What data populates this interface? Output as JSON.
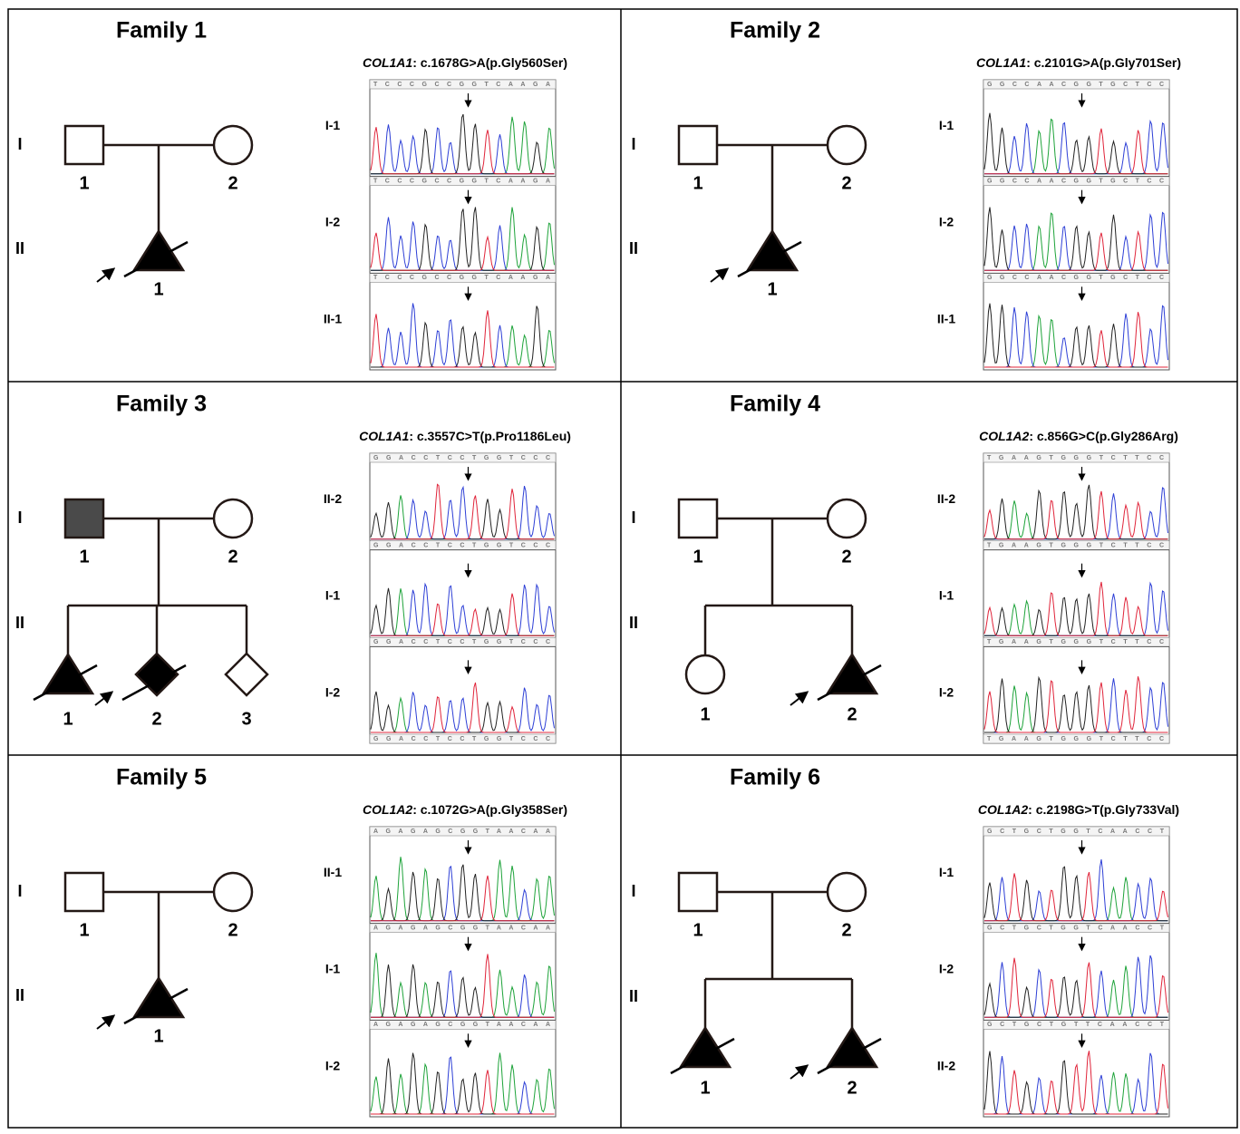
{
  "families": [
    {
      "title": "Family 1",
      "generations": [
        "I",
        "II"
      ],
      "parents": [
        "1",
        "2"
      ],
      "children": [
        "1"
      ],
      "gene": "COL1A1",
      "variant": ": c.1678G>A(p.Gly560Ser)",
      "traces": [
        {
          "label": "I-1",
          "sequence": "TCCCGCCGGTCAAGA"
        },
        {
          "label": "I-2",
          "sequence": "TCCCGCCGGTCAAGA"
        },
        {
          "label": "II-1",
          "sequence": "TCCCGCCGGTCAAGA"
        }
      ]
    },
    {
      "title": "Family 2",
      "generations": [
        "I",
        "II"
      ],
      "parents": [
        "1",
        "2"
      ],
      "children": [
        "1"
      ],
      "gene": "COL1A1",
      "variant": ": c.2101G>A(p.Gly701Ser)",
      "traces": [
        {
          "label": "I-1",
          "sequence": "GGCCAACGGTGCTCC"
        },
        {
          "label": "I-2",
          "sequence": "GGCCAACGGTGCTCC"
        },
        {
          "label": "II-1",
          "sequence": "GGCCAACGGTGCTCC"
        }
      ]
    },
    {
      "title": "Family 3",
      "generations": [
        "I",
        "II"
      ],
      "parents": [
        "1",
        "2"
      ],
      "children": [
        "1",
        "2",
        "3"
      ],
      "gene": "COL1A1",
      "variant": ": c.3557C>T(p.Pro1186Leu)",
      "header_sequence": "GGACCTCCTGGTCCC",
      "traces": [
        {
          "label": "II-2",
          "sequence": "GGACCTCCTGGTCCC"
        },
        {
          "label": "I-1",
          "sequence": "GGACCTCCTGGTCCC"
        },
        {
          "label": "I-2",
          "sequence": "GGACCTCCTGGTCCC"
        }
      ]
    },
    {
      "title": "Family 4",
      "generations": [
        "I",
        "II"
      ],
      "parents": [
        "1",
        "2"
      ],
      "children": [
        "1",
        "2"
      ],
      "gene": "COL1A2",
      "variant": ": c.856G>C(p.Gly286Arg)",
      "header_sequence": "TGAAGTGGGTCTTCC",
      "traces": [
        {
          "label": "II-2",
          "sequence": "TGAAGTGGGTCTTCC"
        },
        {
          "label": "I-1",
          "sequence": "TGAAGTGGGTCTTCC"
        },
        {
          "label": "I-2",
          "sequence": "TGAAGTGGGTCTTCC"
        }
      ]
    },
    {
      "title": "Family 5",
      "generations": [
        "I",
        "II"
      ],
      "parents": [
        "1",
        "2"
      ],
      "children": [
        "1"
      ],
      "gene": "COL1A2",
      "variant": ": c.1072G>A(p.Gly358Ser)",
      "traces": [
        {
          "label": "II-1",
          "sequence": "AGAGAGCGGTAACAA"
        },
        {
          "label": "I-1",
          "sequence": "AGAGAGCGGTAACAA"
        },
        {
          "label": "I-2",
          "sequence": "AGAGAGCGGTAACAA"
        }
      ]
    },
    {
      "title": "Family 6",
      "generations": [
        "I",
        "II"
      ],
      "parents": [
        "1",
        "2"
      ],
      "children": [
        "1",
        "2"
      ],
      "gene": "COL1A2",
      "variant": ": c.2198G>T(p.Gly733Val)",
      "traces": [
        {
          "label": "I-1",
          "sequence": "GCTGCTGGTCAACCT"
        },
        {
          "label": "I-2",
          "sequence": "GCTGCTGGTCAACCT"
        },
        {
          "label": "II-2",
          "sequence": "GCTGCTGTTCAACCT"
        }
      ]
    }
  ]
}
